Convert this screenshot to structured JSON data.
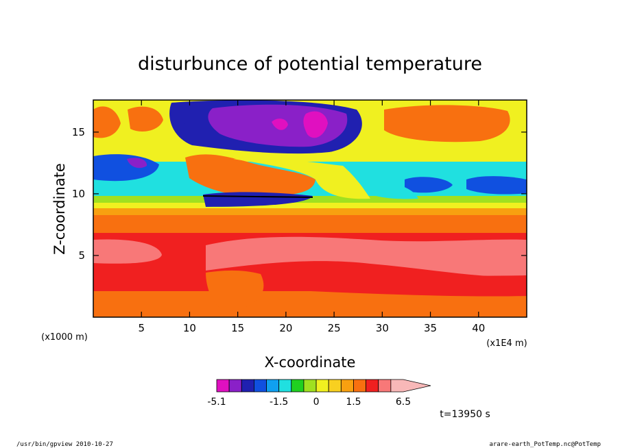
{
  "footer": {
    "left": "/usr/bin/gpview   2010-10-27",
    "right": "arare-earth_PotTemp.nc@PotTemp"
  },
  "time_label": "t=13950 s",
  "chart_data": {
    "type": "heatmap",
    "title": "disturbunce of potential temperature",
    "xlabel": "X-coordinate",
    "ylabel": "Z-coordinate",
    "x_unit_left": "(x1000 m)",
    "x_unit_right": "(x1E4 m)",
    "xlim": [
      0,
      45
    ],
    "ylim": [
      0,
      17.6
    ],
    "xticks": [
      "5",
      "10",
      "15",
      "20",
      "25",
      "30",
      "35",
      "40"
    ],
    "xtick_values": [
      5,
      10,
      15,
      20,
      25,
      30,
      35,
      40
    ],
    "yticks": [
      "5",
      "10",
      "15"
    ],
    "ytick_values": [
      5,
      10,
      15
    ],
    "grid": false,
    "colorbar": {
      "orientation": "horizontal",
      "position": "bottom",
      "levels": [
        -5.1,
        -4.1,
        -3.1,
        -2.6,
        -2.1,
        -1.5,
        -1.0,
        -0.5,
        0.0,
        0.5,
        1.0,
        1.5,
        2.5,
        3.5,
        4.5,
        6.5
      ],
      "colors": [
        "#e010c0",
        "#8a20c8",
        "#2020b0",
        "#1050e0",
        "#10a0f0",
        "#20e0e0",
        "#20d020",
        "#a0e020",
        "#f0f020",
        "#f8d020",
        "#f8a010",
        "#f87010",
        "#f02020",
        "#f87878",
        "#f8b8b8"
      ],
      "labels": [
        "-5.1",
        "-1.5",
        "0",
        "1.5",
        "6.5"
      ],
      "label_values": [
        -5.1,
        -1.5,
        0.0,
        1.5,
        6.5
      ]
    },
    "field_description_bands": [
      {
        "z_range": [
          0,
          2.0
        ],
        "value": 3.0
      },
      {
        "z_range": [
          2.0,
          3.0
        ],
        "value": 3.5
      },
      {
        "z_range": [
          3.0,
          6.5
        ],
        "value": 4.0
      },
      {
        "z_range": [
          6.5,
          8.0
        ],
        "value": 2.5
      },
      {
        "z_range": [
          8.0,
          9.0
        ],
        "value": 1.0
      },
      {
        "z_range": [
          9.0,
          10.0
        ],
        "value": 0.0
      },
      {
        "z_range": [
          10.0,
          13.0
        ],
        "value": -1.5
      },
      {
        "z_range": [
          13.0,
          17.6
        ],
        "value": 1.0
      }
    ],
    "features": [
      {
        "x": 20,
        "z": 15.8,
        "value": -5.1
      },
      {
        "x": 4,
        "z": 13.0,
        "value": -3.1
      },
      {
        "x": 38,
        "z": 11.0,
        "value": -2.6
      },
      {
        "x": 40,
        "z": 15.5,
        "value": 2.5
      },
      {
        "x": 5,
        "z": 16.0,
        "value": 2.5
      },
      {
        "x": 16,
        "z": 11.0,
        "value": 2.5
      },
      {
        "x": 40,
        "z": 4.5,
        "value": 6.5
      },
      {
        "x": 3,
        "z": 5.0,
        "value": 6.5
      }
    ]
  }
}
